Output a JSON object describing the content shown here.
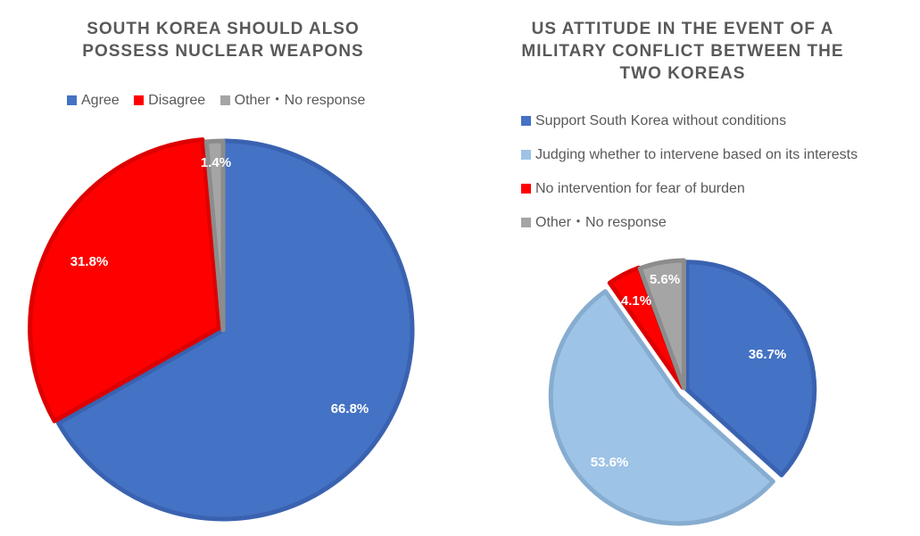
{
  "chart_data": [
    {
      "type": "pie",
      "title": [
        "SOUTH KOREA SHOULD ALSO",
        "POSSESS NUCLEAR WEAPONS"
      ],
      "legend_position": "top",
      "labels": [
        "Agree",
        "Disagree",
        "Other・No response"
      ],
      "values": [
        66.8,
        31.8,
        1.4
      ],
      "value_labels": [
        "66.8%",
        "31.8%",
        "1.4%"
      ],
      "colors": [
        "#4472C4",
        "#FF0000",
        "#A5A5A5"
      ],
      "edge_colors": [
        "#3a62b0",
        "#dd0000",
        "#8c8c8c"
      ],
      "label_colors": [
        "#ffffff",
        "#ffffff",
        "#ffffff"
      ]
    },
    {
      "type": "pie",
      "title": [
        "US ATTITUDE IN THE EVENT OF A",
        "MILITARY CONFLICT BETWEEN THE",
        "TWO KOREAS"
      ],
      "legend_position": "top",
      "labels": [
        "Support South Korea without conditions",
        "Judging whether to intervene based on its interests",
        "No intervention for fear of burden",
        "Other・No response"
      ],
      "values": [
        36.7,
        53.6,
        4.1,
        5.6
      ],
      "value_labels": [
        "36.7%",
        "53.6%",
        "4.1%",
        "5.6%"
      ],
      "colors": [
        "#4472C4",
        "#9DC3E6",
        "#FF0000",
        "#A5A5A5"
      ],
      "edge_colors": [
        "#3a62b0",
        "#86acd0",
        "#dd0000",
        "#8c8c8c"
      ],
      "label_colors": [
        "#ffffff",
        "#ffffff",
        "#ffffff",
        "#ffffff"
      ]
    }
  ]
}
